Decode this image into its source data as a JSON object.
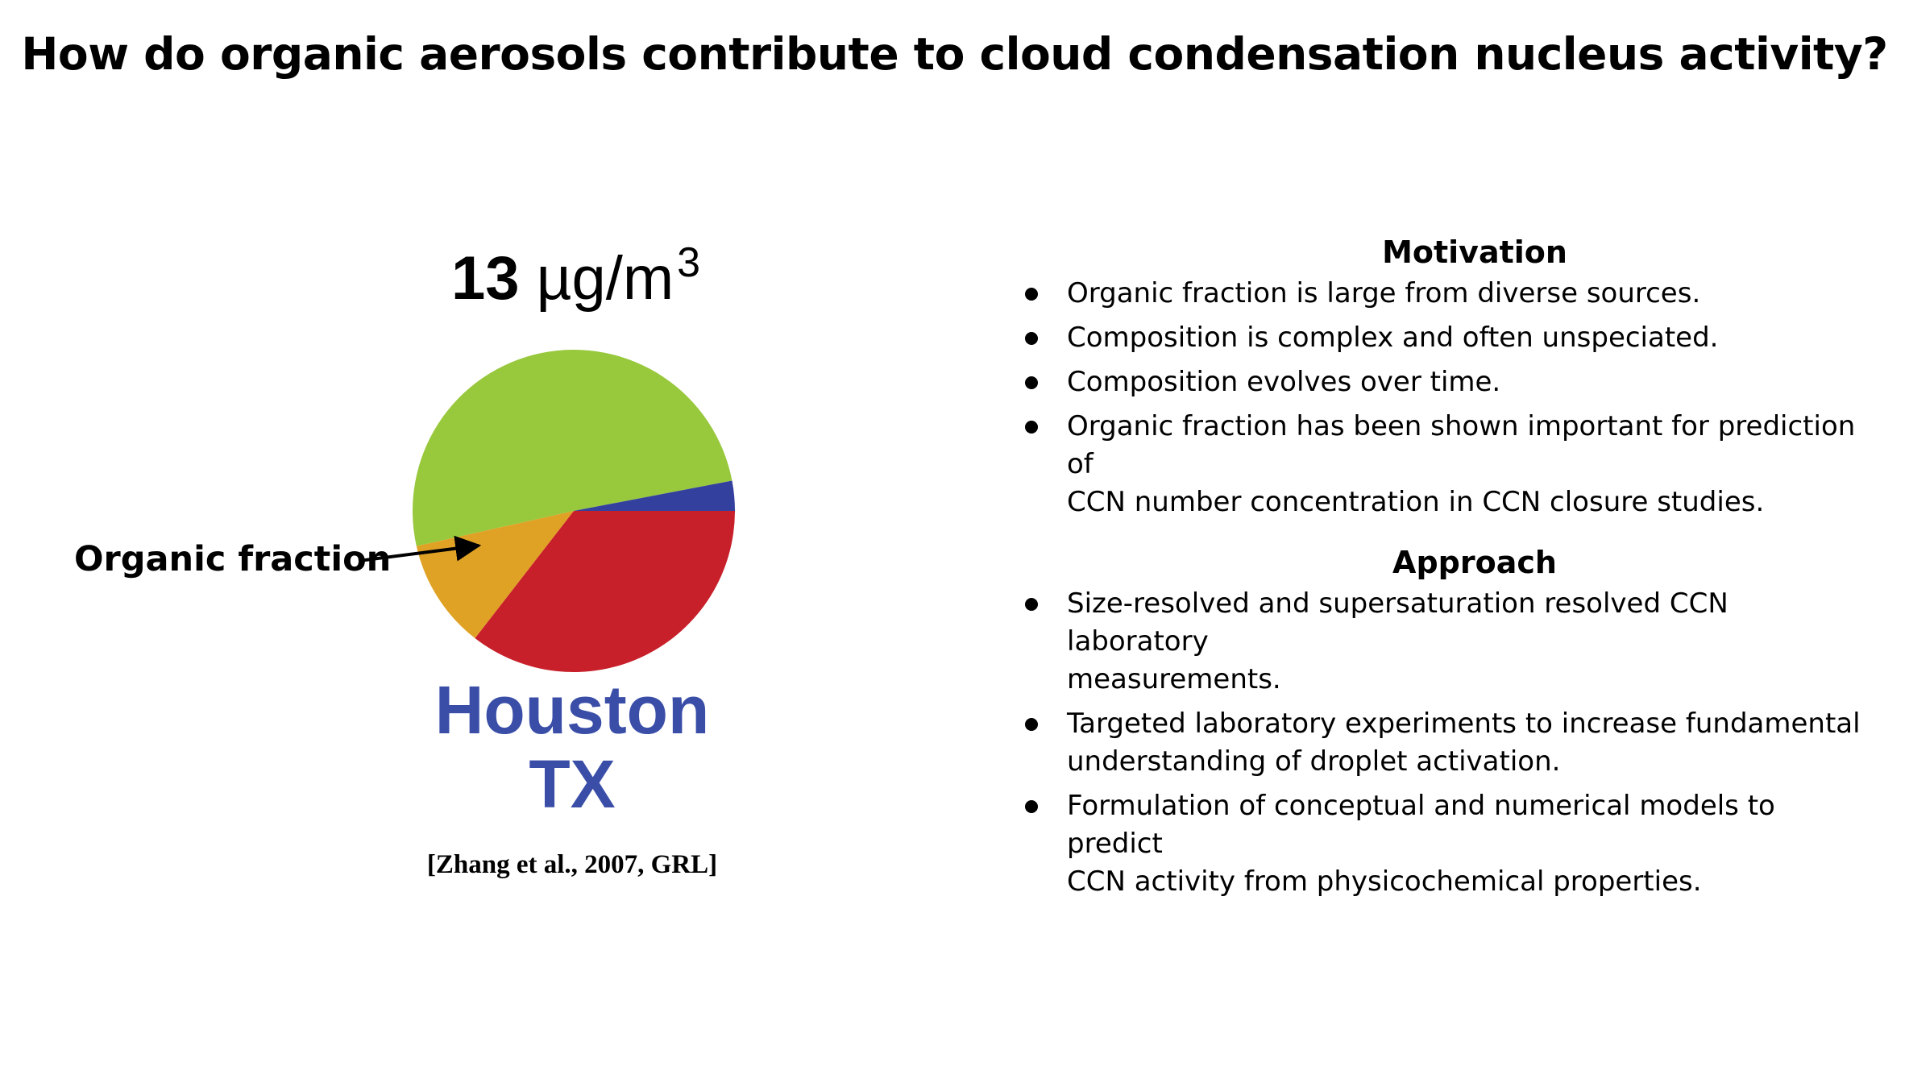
{
  "title": "How do organic aerosols contribute to cloud condensation nucleus activity?",
  "figure": {
    "mass_value": "13",
    "mass_unit": "µg/m",
    "mass_exponent": "3",
    "organic_label": "Organic fraction",
    "city": "Houston",
    "state": "TX",
    "citation": "[Zhang et al., 2007, GRL]"
  },
  "chart_data": {
    "type": "pie",
    "slices": [
      {
        "value": 0.355,
        "color": "#c8202a"
      },
      {
        "value": 0.11,
        "color": "#e0a225"
      },
      {
        "value": 0.505,
        "color": "#98c83c"
      },
      {
        "value": 0.03,
        "color": "#34409e"
      }
    ],
    "start_angle_deg": 0,
    "direction": "clockwise-from-east",
    "annotation": "Organic fraction"
  },
  "motivation": {
    "heading": "Motivation",
    "items": [
      {
        "line1": "Organic fraction is large from diverse sources.",
        "line2": ""
      },
      {
        "line1": "Composition is complex and often unspeciated.",
        "line2": ""
      },
      {
        "line1": "Composition evolves over time.",
        "line2": ""
      },
      {
        "line1": "Organic fraction has been shown important for prediction of",
        "line2": "CCN number concentration in CCN closure studies."
      }
    ]
  },
  "approach": {
    "heading": "Approach",
    "items": [
      {
        "line1": "Size-resolved and supersaturation resolved CCN laboratory",
        "line2": "measurements."
      },
      {
        "line1": "Targeted laboratory experiments to increase fundamental",
        "line2": "understanding of droplet activation."
      },
      {
        "line1": "Formulation of conceptual and numerical models to predict",
        "line2": "CCN activity from physicochemical properties."
      }
    ]
  }
}
